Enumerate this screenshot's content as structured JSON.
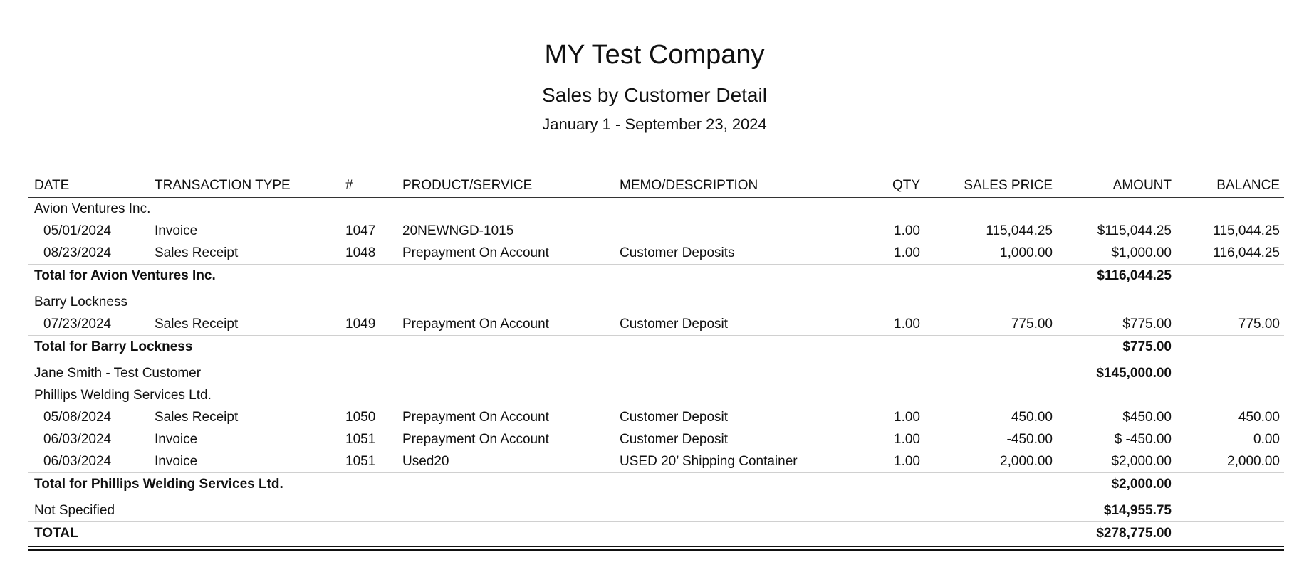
{
  "report": {
    "company": "MY Test Company",
    "title": "Sales by  Customer Detail",
    "period": "January 1 - September 23, 2024"
  },
  "columns": {
    "date": "DATE",
    "type": "TRANSACTION TYPE",
    "num": "#",
    "product": "PRODUCT/SERVICE",
    "memo": "MEMO/DESCRIPTION",
    "qty": "QTY",
    "price": "SALES PRICE",
    "amount": "AMOUNT",
    "balance": "BALANCE"
  },
  "groups": [
    {
      "name": "Avion Ventures Inc.",
      "rows": [
        {
          "date": "05/01/2024",
          "type": "Invoice",
          "num": "1047",
          "product": "20NEWNGD-1015",
          "memo": "",
          "qty": "1.00",
          "price": "115,044.25",
          "amount": "$115,044.25",
          "balance": "115,044.25"
        },
        {
          "date": "08/23/2024",
          "type": "Sales Receipt",
          "num": "1048",
          "product": "Prepayment On Account",
          "memo": "Customer Deposits",
          "qty": "1.00",
          "price": "1,000.00",
          "amount": "$1,000.00",
          "balance": "116,044.25"
        }
      ],
      "total_label": "Total for Avion Ventures Inc.",
      "total_amount": "$116,044.25"
    },
    {
      "name": "Barry Lockness",
      "rows": [
        {
          "date": "07/23/2024",
          "type": "Sales Receipt",
          "num": "1049",
          "product": "Prepayment On Account",
          "memo": "Customer Deposit",
          "qty": "1.00",
          "price": "775.00",
          "amount": "$775.00",
          "balance": "775.00"
        }
      ],
      "total_label": "Total for Barry Lockness",
      "total_amount": "$775.00"
    },
    {
      "name": "Jane Smith - Test Customer",
      "amount": "$145,000.00"
    },
    {
      "name": "Phillips Welding Services Ltd.",
      "rows": [
        {
          "date": "05/08/2024",
          "type": "Sales Receipt",
          "num": "1050",
          "product": "Prepayment On Account",
          "memo": "Customer Deposit",
          "qty": "1.00",
          "price": "450.00",
          "amount": "$450.00",
          "balance": "450.00"
        },
        {
          "date": "06/03/2024",
          "type": "Invoice",
          "num": "1051",
          "product": "Prepayment On Account",
          "memo": "Customer Deposit",
          "qty": "1.00",
          "price": "-450.00",
          "amount": "$ -450.00",
          "balance": "0.00"
        },
        {
          "date": "06/03/2024",
          "type": "Invoice",
          "num": "1051",
          "product": "Used20",
          "memo": "USED 20’ Shipping Container",
          "qty": "1.00",
          "price": "2,000.00",
          "amount": "$2,000.00",
          "balance": "2,000.00"
        }
      ],
      "total_label": "Total for Phillips Welding Services Ltd.",
      "total_amount": "$2,000.00"
    },
    {
      "name": "Not Specified",
      "amount": "$14,955.75"
    }
  ],
  "grand_total": {
    "label": "TOTAL",
    "amount": "$278,775.00"
  }
}
